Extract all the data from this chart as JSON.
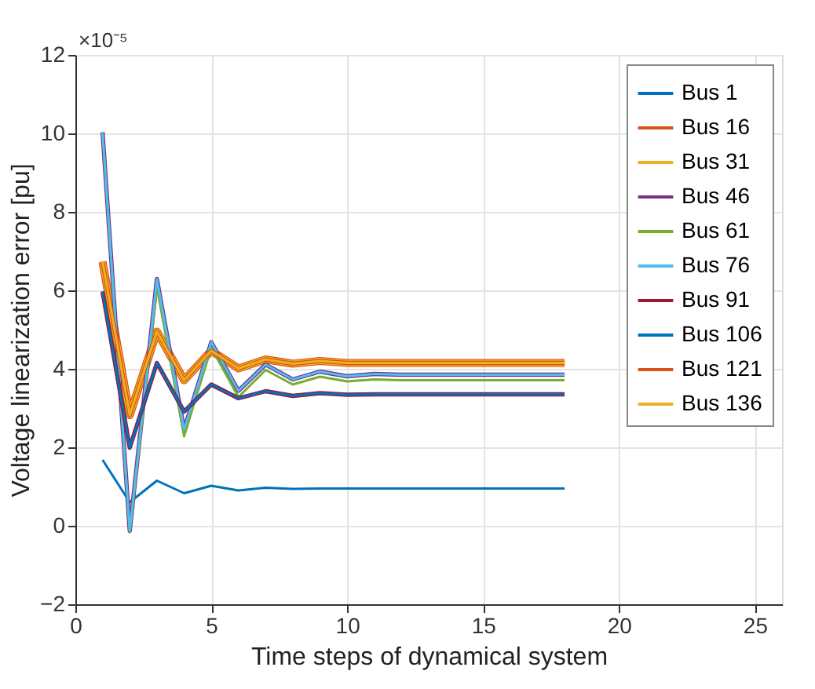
{
  "chart_data": {
    "type": "line",
    "xlabel": "Time steps of dynamical system",
    "ylabel": "Voltage linearization error [pu]",
    "annotations": [
      "×10⁻⁵"
    ],
    "x": [
      1,
      2,
      3,
      4,
      5,
      6,
      7,
      8,
      9,
      10,
      11,
      12,
      13,
      14,
      15,
      16,
      17,
      18
    ],
    "xlim": [
      0,
      26
    ],
    "xticks": [
      0,
      5,
      10,
      15,
      20,
      25
    ],
    "ylim": [
      -2,
      12
    ],
    "yticks": [
      -2,
      0,
      2,
      4,
      6,
      8,
      10,
      12
    ],
    "grid": true,
    "legend": "top right",
    "line_style": "solid",
    "marker": "none",
    "series": [
      {
        "name": "Bus 1",
        "color": "#0072bd",
        "values": [
          1.68,
          0.6,
          1.15,
          0.83,
          1.02,
          0.9,
          0.97,
          0.94,
          0.95,
          0.95,
          0.95,
          0.95,
          0.95,
          0.95,
          0.95,
          0.95,
          0.95,
          0.95
        ]
      },
      {
        "name": "Bus 16",
        "color": "#d95319",
        "values": [
          6.73,
          2.82,
          4.95,
          3.71,
          4.46,
          4.01,
          4.24,
          4.13,
          4.2,
          4.15,
          4.15,
          4.15,
          4.15,
          4.15,
          4.15,
          4.15,
          4.15,
          4.15
        ]
      },
      {
        "name": "Bus 31",
        "color": "#edb120",
        "values": [
          6.73,
          2.82,
          4.95,
          3.71,
          4.46,
          4.01,
          4.24,
          4.13,
          4.2,
          4.15,
          4.15,
          4.15,
          4.15,
          4.15,
          4.15,
          4.15,
          4.15,
          4.15
        ]
      },
      {
        "name": "Bus 46",
        "color": "#7e2f8e",
        "values": [
          10.03,
          -0.13,
          6.29,
          2.45,
          4.68,
          3.44,
          4.11,
          3.73,
          3.93,
          3.81,
          3.87,
          3.85,
          3.85,
          3.85,
          3.85,
          3.85,
          3.85,
          3.85
        ]
      },
      {
        "name": "Bus 61",
        "color": "#77ac30",
        "values": [
          10.03,
          -0.17,
          6.09,
          2.28,
          4.54,
          3.28,
          3.97,
          3.6,
          3.8,
          3.68,
          3.73,
          3.71,
          3.71,
          3.71,
          3.71,
          3.71,
          3.71,
          3.71
        ]
      },
      {
        "name": "Bus 76",
        "color": "#4dbeee",
        "values": [
          10.03,
          -0.13,
          6.29,
          2.45,
          4.68,
          3.44,
          4.11,
          3.73,
          3.93,
          3.81,
          3.87,
          3.85,
          3.85,
          3.85,
          3.85,
          3.85,
          3.85,
          3.85
        ]
      },
      {
        "name": "Bus 91",
        "color": "#a2142f",
        "values": [
          5.97,
          1.99,
          4.15,
          2.91,
          3.6,
          3.25,
          3.43,
          3.31,
          3.38,
          3.34,
          3.35,
          3.35,
          3.35,
          3.35,
          3.35,
          3.35,
          3.35,
          3.35
        ]
      },
      {
        "name": "Bus 106",
        "color": "#0072bd",
        "values": [
          5.97,
          1.99,
          4.15,
          2.91,
          3.6,
          3.25,
          3.43,
          3.31,
          3.38,
          3.34,
          3.35,
          3.35,
          3.35,
          3.35,
          3.35,
          3.35,
          3.35,
          3.35
        ]
      },
      {
        "name": "Bus 121",
        "color": "#d95319",
        "values": [
          6.73,
          2.82,
          4.95,
          3.71,
          4.46,
          4.01,
          4.24,
          4.13,
          4.2,
          4.15,
          4.15,
          4.15,
          4.15,
          4.15,
          4.15,
          4.15,
          4.15,
          4.15
        ]
      },
      {
        "name": "Bus 136",
        "color": "#edb120",
        "values": [
          6.73,
          2.82,
          4.95,
          3.71,
          4.46,
          4.01,
          4.24,
          4.13,
          4.2,
          4.15,
          4.15,
          4.15,
          4.15,
          4.15,
          4.15,
          4.15,
          4.15,
          4.15
        ]
      }
    ]
  }
}
